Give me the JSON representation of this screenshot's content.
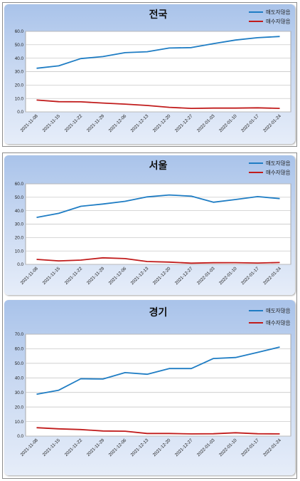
{
  "colors": {
    "sell": "#1f7dc4",
    "buy": "#c11c1c",
    "grid": "#bfbfbf"
  },
  "chart_data": [
    {
      "type": "line",
      "title": "전국",
      "categories": [
        "2021-11-08",
        "2021-11-15",
        "2021-11-22",
        "2021-11-29",
        "2021-12-06",
        "2021-12-13",
        "2021-12-20",
        "2021-12-27",
        "2022-01-03",
        "2022-01-10",
        "2022-01-17",
        "2022-01-24"
      ],
      "ylim": [
        0,
        60
      ],
      "yticks": [
        "0.0",
        "10.0",
        "20.0",
        "30.0",
        "40.0",
        "50.0",
        "60.0"
      ],
      "grid": true,
      "legend_position": "top-right",
      "series": [
        {
          "name": "매도자많음",
          "values": [
            32.5,
            34.3,
            39.7,
            41.2,
            44.1,
            44.8,
            47.6,
            47.9,
            50.8,
            53.5,
            55.3,
            56.2
          ]
        },
        {
          "name": "매수자많음",
          "values": [
            8.8,
            7.6,
            7.5,
            6.6,
            5.8,
            4.8,
            3.4,
            2.6,
            2.8,
            2.8,
            3.0,
            2.6
          ]
        }
      ]
    },
    {
      "type": "line",
      "title": "서울",
      "categories": [
        "2021-11-08",
        "2021-11-15",
        "2021-11-22",
        "2021-11-29",
        "2021-12-06",
        "2021-12-13",
        "2021-12-20",
        "2021-12-27",
        "2022-01-03",
        "2022-01-10",
        "2022-01-17",
        "2022-01-24"
      ],
      "ylim": [
        0,
        60
      ],
      "yticks": [
        "0.0",
        "10.0",
        "20.0",
        "30.0",
        "40.0",
        "50.0",
        "60.0"
      ],
      "grid": true,
      "legend_position": "top-right",
      "series": [
        {
          "name": "매도자많음",
          "values": [
            35.0,
            38.0,
            43.3,
            45.0,
            47.0,
            50.3,
            51.7,
            50.8,
            46.3,
            48.3,
            50.5,
            49.0
          ]
        },
        {
          "name": "매수자많음",
          "values": [
            3.7,
            2.6,
            3.2,
            4.9,
            4.3,
            2.1,
            1.7,
            0.9,
            1.2,
            1.3,
            1.0,
            1.4
          ]
        }
      ]
    },
    {
      "type": "line",
      "title": "경기",
      "categories": [
        "2021-11-08",
        "2021-11-15",
        "2021-11-22",
        "2021-11-29",
        "2021-12-06",
        "2021-12-13",
        "2021-12-20",
        "2021-12-27",
        "2022-01-03",
        "2022-01-10",
        "2022-01-17",
        "2022-01-24"
      ],
      "ylim": [
        0,
        70
      ],
      "yticks": [
        "0.0",
        "10.0",
        "20.0",
        "30.0",
        "40.0",
        "50.0",
        "60.0",
        "70.0"
      ],
      "grid": true,
      "legend_position": "top-right",
      "series": [
        {
          "name": "매도자많음",
          "values": [
            28.8,
            31.5,
            39.4,
            39.2,
            43.6,
            42.5,
            46.4,
            46.4,
            53.3,
            54.0,
            57.5,
            61.2
          ]
        },
        {
          "name": "매수자많음",
          "values": [
            5.8,
            5.0,
            4.5,
            3.5,
            3.4,
            1.8,
            1.8,
            1.5,
            1.6,
            2.3,
            1.6,
            1.5
          ]
        }
      ]
    }
  ]
}
